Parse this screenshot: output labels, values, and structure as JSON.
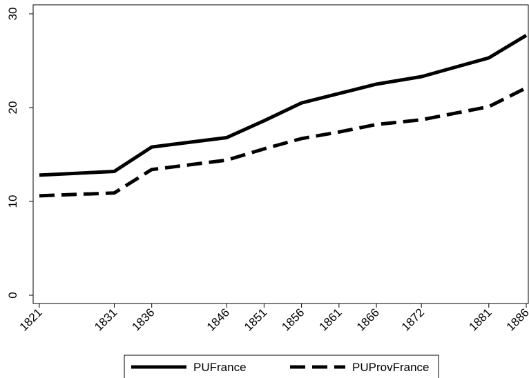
{
  "chart_data": {
    "type": "line",
    "x": [
      1821,
      1831,
      1836,
      1846,
      1851,
      1856,
      1861,
      1866,
      1872,
      1881,
      1886
    ],
    "series": [
      {
        "name": "PUFrance",
        "color": "#000000",
        "dash": "solid",
        "values": [
          12.8,
          13.2,
          15.8,
          16.8,
          18.6,
          20.5,
          21.5,
          22.5,
          23.3,
          25.3,
          27.7
        ]
      },
      {
        "name": "PUProvFrance",
        "color": "#000000",
        "dash": "dashed",
        "values": [
          10.6,
          10.9,
          13.4,
          14.4,
          15.6,
          16.7,
          17.4,
          18.2,
          18.7,
          20.1,
          22.1
        ]
      }
    ],
    "xlim": [
      1821,
      1886
    ],
    "xticks": [
      1821,
      1831,
      1836,
      1846,
      1851,
      1856,
      1861,
      1866,
      1872,
      1881,
      1886
    ],
    "ylim": [
      0,
      30
    ],
    "yticks": [
      0,
      10,
      20,
      30
    ],
    "legend": "bottom"
  }
}
